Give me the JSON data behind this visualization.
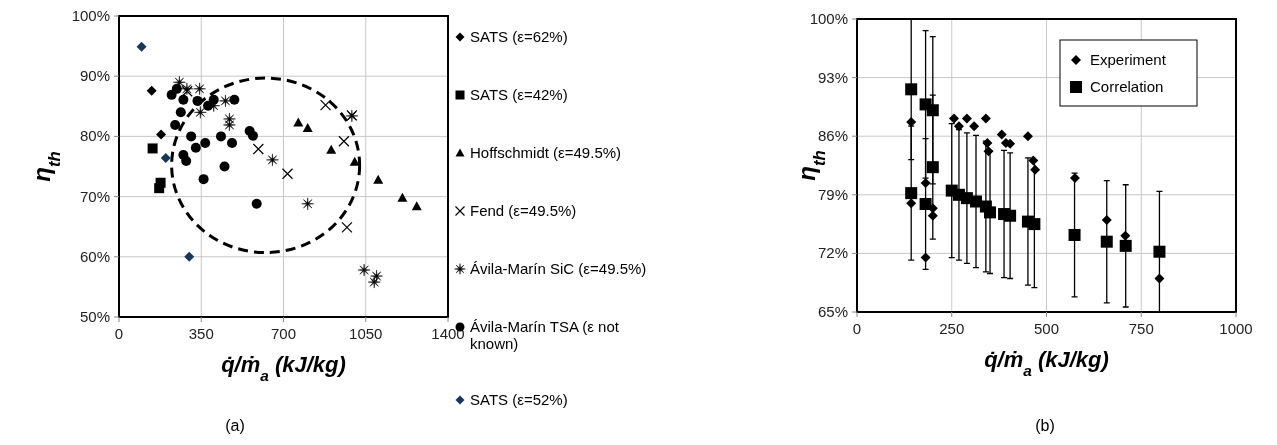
{
  "chart_data": [
    {
      "type": "scatter",
      "xlabel": "q̇/ṁ$_{a}$ (kJ/kg)",
      "ylabel": "η$_{th}$",
      "annotations": [
        "(a)"
      ],
      "xlim": [
        0,
        1400
      ],
      "xticks": [
        0,
        350,
        700,
        1050,
        1400
      ],
      "ylim": [
        50,
        100
      ],
      "yticks": [
        {
          "value": 50,
          "label": "50%"
        },
        {
          "value": 60,
          "label": "60%"
        },
        {
          "value": 70,
          "label": "70%"
        },
        {
          "value": 80,
          "label": "80%"
        },
        {
          "value": 90,
          "label": "90%"
        },
        {
          "value": 100,
          "label": "100%"
        }
      ],
      "grid": true,
      "legend": "right",
      "series": [
        {
          "name": "SATS (ε=62%)",
          "color": "#000000",
          "marker": "diamond",
          "x": [
            139,
            179
          ],
          "values": [
            87.6,
            80.3
          ]
        },
        {
          "name": "SATS (ε=42%)",
          "color": "#000000",
          "marker": "square",
          "x": [
            143,
            177,
            171
          ],
          "values": [
            78.0,
            72.3,
            71.4
          ]
        },
        {
          "name": "Hoffschmidt (ε=49.5%)",
          "color": "#000000",
          "marker": "triangle",
          "x": [
            763,
            803,
            903,
            1003,
            1103,
            1206,
            1267
          ],
          "values": [
            82.3,
            81.4,
            77.8,
            75.8,
            72.8,
            69.8,
            68.4
          ]
        },
        {
          "name": "Fend (ε=49.5%)",
          "color": "#000000",
          "marker": "cross",
          "x": [
            879,
            991,
            957,
            593,
            717,
            970,
            290
          ],
          "values": [
            85.2,
            83.5,
            79.2,
            77.9,
            73.8,
            64.9,
            87.5
          ]
        },
        {
          "name": "Ávila-Marín SiC (ε=49.5%)",
          "color": "#000000",
          "marker": "star",
          "x": [
            257,
            289,
            343,
            403,
            346,
            453,
            470,
            470,
            653,
            991,
            803,
            1043,
            1096,
            1086
          ],
          "values": [
            89.0,
            87.9,
            87.9,
            85.1,
            84.0,
            85.9,
            82.9,
            81.9,
            76.1,
            83.4,
            68.8,
            57.8,
            56.8,
            55.8
          ]
        },
        {
          "name": "Ávila-Marín TSA (ε not known)",
          "color": "#000000",
          "marker": "circle",
          "x": [
            224,
            246,
            274,
            263,
            239,
            307,
            327,
            367,
            274,
            286,
            334,
            379,
            403,
            491,
            434,
            481,
            556,
            570,
            449,
            360,
            586
          ],
          "values": [
            86.9,
            87.9,
            86.1,
            84.0,
            81.9,
            80.0,
            78.1,
            78.9,
            76.9,
            75.9,
            85.9,
            85.1,
            86.1,
            86.1,
            80.0,
            78.9,
            80.9,
            80.1,
            75.0,
            72.9,
            68.8
          ]
        },
        {
          "name": "SATS (ε=52%)",
          "color": "#17375e",
          "marker": "diamond",
          "x": [
            96,
            199,
            299
          ],
          "values": [
            94.9,
            76.4,
            60.0
          ]
        }
      ]
    },
    {
      "type": "scatter",
      "xlabel": "q̇/ṁ$_{a}$ (kJ/kg)",
      "ylabel": "η$_{th}$",
      "annotations": [
        "(b)"
      ],
      "xlim": [
        0,
        1000
      ],
      "xticks": [
        0,
        250,
        500,
        750,
        1000
      ],
      "ylim": [
        65,
        100
      ],
      "yticks": [
        {
          "value": 65,
          "label": "65%"
        },
        {
          "value": 72,
          "label": "72%"
        },
        {
          "value": 79,
          "label": "79%"
        },
        {
          "value": 86,
          "label": "86%"
        },
        {
          "value": 93,
          "label": "93%"
        },
        {
          "value": 100,
          "label": "100%"
        }
      ],
      "grid": true,
      "legend": "top right",
      "series": [
        {
          "name": "Experiment",
          "color": "#000000",
          "marker": "diamond",
          "x": [
            143,
            143,
            181,
            181,
            200,
            200,
            256,
            269,
            290,
            309,
            340,
            344,
            347,
            382,
            393,
            404,
            451,
            465,
            470,
            575,
            659,
            708,
            798
          ],
          "values": [
            87.7,
            78.0,
            80.4,
            71.5,
            77.4,
            76.5,
            88.1,
            87.2,
            88.1,
            87.2,
            88.1,
            85.2,
            84.2,
            86.2,
            85.2,
            85.1,
            86.0,
            83.1,
            82.0,
            81.0,
            76.0,
            74.1,
            69.0
          ]
        },
        {
          "name": "Correlation",
          "color": "#000000",
          "marker": "square",
          "x": [
            143,
            143,
            181,
            181,
            200,
            200,
            250,
            269,
            290,
            314,
            340,
            351,
            388,
            404,
            451,
            468,
            574,
            659,
            709,
            798
          ],
          "values": [
            91.6,
            79.2,
            89.8,
            77.9,
            89.1,
            82.3,
            79.5,
            79.0,
            78.6,
            78.2,
            77.6,
            76.9,
            76.7,
            76.5,
            75.8,
            75.5,
            74.2,
            73.4,
            72.9,
            72.2
          ],
          "errors": [
            8.4,
            8,
            8.8,
            7.8,
            8.8,
            8.6,
            8,
            7.8,
            7.8,
            7.9,
            7.8,
            7.3,
            7.6,
            7.5,
            7.6,
            7.6,
            7.4,
            7.3,
            7.3,
            7.2
          ]
        }
      ]
    }
  ]
}
